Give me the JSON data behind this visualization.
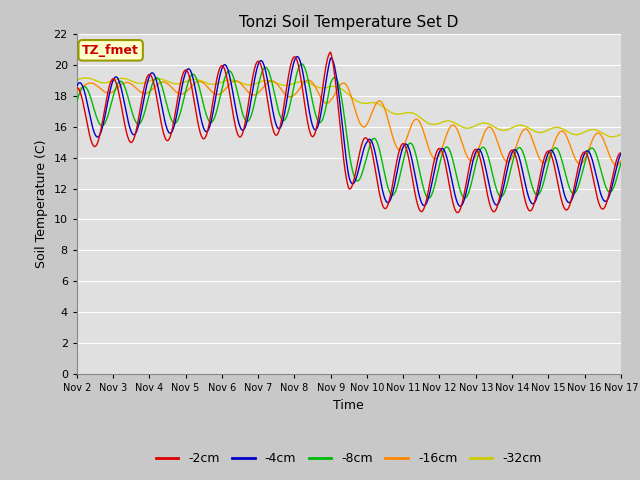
{
  "title": "Tonzi Soil Temperature Set D",
  "xlabel": "Time",
  "ylabel": "Soil Temperature (C)",
  "ylim": [
    0,
    22
  ],
  "yticks": [
    0,
    2,
    4,
    6,
    8,
    10,
    12,
    14,
    16,
    18,
    20,
    22
  ],
  "xtick_labels": [
    "Nov 2",
    "Nov 3",
    "Nov 4",
    "Nov 5",
    "Nov 6",
    "Nov 7",
    "Nov 8",
    "Nov 9",
    "Nov 10",
    "Nov 11",
    "Nov 12",
    "Nov 13",
    "Nov 14",
    "Nov 15",
    "Nov 16",
    "Nov 17"
  ],
  "annotation_text": "TZ_fmet",
  "annotation_color": "#cc0000",
  "annotation_bg": "#ffffcc",
  "annotation_border": "#999900",
  "series_colors": [
    "#dd0000",
    "#0000cc",
    "#00bb00",
    "#ff8800",
    "#cccc00"
  ],
  "series_labels": [
    "-2cm",
    "-4cm",
    "-8cm",
    "-16cm",
    "-32cm"
  ],
  "fig_facecolor": "#c8c8c8",
  "ax_facecolor": "#e0e0e0",
  "grid_color": "#ffffff",
  "linewidth": 1.0
}
